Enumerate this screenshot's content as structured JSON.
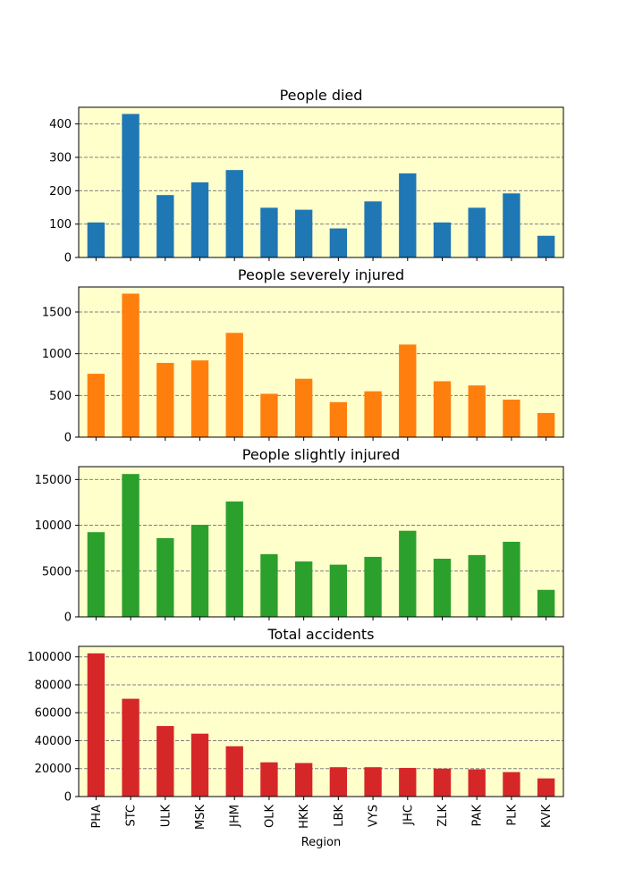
{
  "chart_data": [
    {
      "type": "bar",
      "title": "People died",
      "color": "#1f77b4",
      "categories": [
        "PHA",
        "STC",
        "ULK",
        "MSK",
        "JHM",
        "OLK",
        "HKK",
        "LBK",
        "VYS",
        "JHC",
        "ZLK",
        "PAK",
        "PLK",
        "KVK"
      ],
      "values": [
        105,
        430,
        187,
        225,
        262,
        149,
        143,
        87,
        168,
        252,
        105,
        149,
        192,
        65
      ],
      "ylim": [
        0,
        450
      ],
      "yticks": [
        0,
        100,
        200,
        300,
        400
      ],
      "ytick_labels": [
        "0",
        "100",
        "200",
        "300",
        "400"
      ],
      "xlabel": "",
      "ylabel": "",
      "grid": "y, dashed gray",
      "background": "#ffffcc"
    },
    {
      "type": "bar",
      "title": "People severely injured",
      "color": "#ff7f0e",
      "categories": [
        "PHA",
        "STC",
        "ULK",
        "MSK",
        "JHM",
        "OLK",
        "HKK",
        "LBK",
        "VYS",
        "JHC",
        "ZLK",
        "PAK",
        "PLK",
        "KVK"
      ],
      "values": [
        760,
        1720,
        890,
        920,
        1250,
        520,
        700,
        420,
        550,
        1110,
        670,
        620,
        450,
        290
      ],
      "ylim": [
        0,
        1800
      ],
      "yticks": [
        0,
        500,
        1000,
        1500
      ],
      "ytick_labels": [
        "0",
        "500",
        "1000",
        "1500"
      ],
      "xlabel": "",
      "ylabel": "",
      "grid": "y, dashed gray",
      "background": "#ffffcc"
    },
    {
      "type": "bar",
      "title": "People slightly injured",
      "color": "#2ca02c",
      "categories": [
        "PHA",
        "STC",
        "ULK",
        "MSK",
        "JHM",
        "OLK",
        "HKK",
        "LBK",
        "VYS",
        "JHC",
        "ZLK",
        "PAK",
        "PLK",
        "KVK"
      ],
      "values": [
        9250,
        15600,
        8600,
        10050,
        12600,
        6850,
        6050,
        5700,
        6550,
        9400,
        6350,
        6750,
        8200,
        2950
      ],
      "ylim": [
        0,
        16400
      ],
      "yticks": [
        0,
        5000,
        10000,
        15000
      ],
      "ytick_labels": [
        "0",
        "5000",
        "10000",
        "15000"
      ],
      "xlabel": "",
      "ylabel": "",
      "grid": "y, dashed gray",
      "background": "#ffffcc"
    },
    {
      "type": "bar",
      "title": "Total accidents",
      "color": "#d62728",
      "categories": [
        "PHA",
        "STC",
        "ULK",
        "MSK",
        "JHM",
        "OLK",
        "HKK",
        "LBK",
        "VYS",
        "JHC",
        "ZLK",
        "PAK",
        "PLK",
        "KVK"
      ],
      "values": [
        102500,
        70000,
        50500,
        45000,
        36000,
        24500,
        24000,
        21000,
        21000,
        20500,
        20000,
        19500,
        17500,
        13000
      ],
      "ylim": [
        0,
        107500
      ],
      "yticks": [
        0,
        20000,
        40000,
        60000,
        80000,
        100000
      ],
      "ytick_labels": [
        "0",
        "20000",
        "40000",
        "60000",
        "80000",
        "100000"
      ],
      "xlabel": "Region",
      "ylabel": "",
      "grid": "y, dashed gray",
      "background": "#ffffcc"
    }
  ]
}
